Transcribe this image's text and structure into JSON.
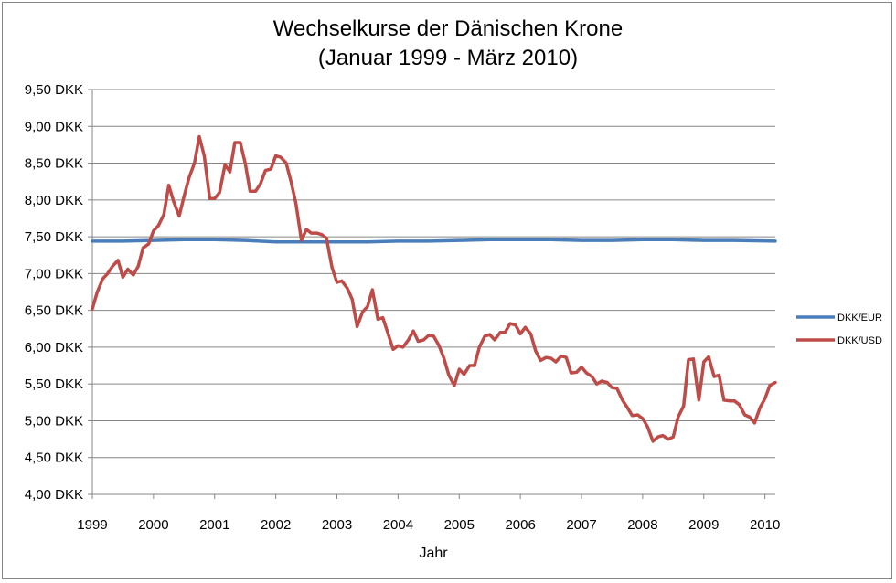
{
  "chart_data": {
    "type": "line",
    "title": "Wechselkurse der Dänischen Krone",
    "subtitle": "(Januar 1999 - März 2010)",
    "xlabel": "Jahr",
    "ylabel": "",
    "xlim": [
      1999.0,
      2010.17
    ],
    "ylim": [
      4.0,
      9.5
    ],
    "y_tick_step": 0.5,
    "y_tick_labels": [
      "4,00 DKK",
      "4,50 DKK",
      "5,00 DKK",
      "5,50 DKK",
      "6,00 DKK",
      "6,50 DKK",
      "7,00 DKK",
      "7,50 DKK",
      "8,00 DKK",
      "8,50 DKK",
      "9,00 DKK",
      "9,50 DKK"
    ],
    "x_tick_labels": [
      "1999",
      "2000",
      "2001",
      "2002",
      "2003",
      "2004",
      "2005",
      "2006",
      "2007",
      "2008",
      "2009",
      "2010"
    ],
    "grid": "horizontal",
    "legend_position": "right",
    "series": [
      {
        "name": "DKK/EUR",
        "color": "#4a7ebb",
        "points": [
          [
            1999.0,
            7.44
          ],
          [
            1999.5,
            7.44
          ],
          [
            2000.0,
            7.45
          ],
          [
            2000.5,
            7.46
          ],
          [
            2000.75,
            7.46
          ],
          [
            2001.0,
            7.46
          ],
          [
            2001.5,
            7.45
          ],
          [
            2002.0,
            7.43
          ],
          [
            2002.5,
            7.43
          ],
          [
            2003.0,
            7.43
          ],
          [
            2003.5,
            7.43
          ],
          [
            2004.0,
            7.44
          ],
          [
            2004.5,
            7.44
          ],
          [
            2005.0,
            7.45
          ],
          [
            2005.5,
            7.46
          ],
          [
            2006.0,
            7.46
          ],
          [
            2006.5,
            7.46
          ],
          [
            2007.0,
            7.45
          ],
          [
            2007.5,
            7.45
          ],
          [
            2008.0,
            7.46
          ],
          [
            2008.5,
            7.46
          ],
          [
            2009.0,
            7.45
          ],
          [
            2009.5,
            7.45
          ],
          [
            2010.17,
            7.44
          ]
        ]
      },
      {
        "name": "DKK/USD",
        "color": "#be4b48",
        "points": [
          [
            1999.0,
            6.52
          ],
          [
            1999.08,
            6.75
          ],
          [
            1999.17,
            6.93
          ],
          [
            1999.25,
            7.0
          ],
          [
            1999.33,
            7.1
          ],
          [
            1999.42,
            7.18
          ],
          [
            1999.5,
            6.95
          ],
          [
            1999.58,
            7.06
          ],
          [
            1999.67,
            6.98
          ],
          [
            1999.75,
            7.1
          ],
          [
            1999.83,
            7.35
          ],
          [
            1999.92,
            7.4
          ],
          [
            2000.0,
            7.58
          ],
          [
            2000.08,
            7.65
          ],
          [
            2000.17,
            7.8
          ],
          [
            2000.25,
            8.2
          ],
          [
            2000.33,
            7.98
          ],
          [
            2000.42,
            7.78
          ],
          [
            2000.5,
            8.05
          ],
          [
            2000.58,
            8.3
          ],
          [
            2000.67,
            8.5
          ],
          [
            2000.75,
            8.86
          ],
          [
            2000.83,
            8.6
          ],
          [
            2000.92,
            8.02
          ],
          [
            2001.0,
            8.02
          ],
          [
            2001.08,
            8.1
          ],
          [
            2001.17,
            8.48
          ],
          [
            2001.25,
            8.38
          ],
          [
            2001.33,
            8.78
          ],
          [
            2001.42,
            8.78
          ],
          [
            2001.5,
            8.5
          ],
          [
            2001.58,
            8.12
          ],
          [
            2001.67,
            8.12
          ],
          [
            2001.75,
            8.22
          ],
          [
            2001.83,
            8.4
          ],
          [
            2001.92,
            8.42
          ],
          [
            2002.0,
            8.6
          ],
          [
            2002.08,
            8.58
          ],
          [
            2002.17,
            8.5
          ],
          [
            2002.25,
            8.25
          ],
          [
            2002.33,
            7.95
          ],
          [
            2002.42,
            7.45
          ],
          [
            2002.5,
            7.6
          ],
          [
            2002.58,
            7.55
          ],
          [
            2002.67,
            7.55
          ],
          [
            2002.75,
            7.53
          ],
          [
            2002.83,
            7.48
          ],
          [
            2002.92,
            7.08
          ],
          [
            2003.0,
            6.88
          ],
          [
            2003.08,
            6.9
          ],
          [
            2003.17,
            6.8
          ],
          [
            2003.25,
            6.65
          ],
          [
            2003.33,
            6.28
          ],
          [
            2003.42,
            6.48
          ],
          [
            2003.5,
            6.55
          ],
          [
            2003.58,
            6.78
          ],
          [
            2003.67,
            6.38
          ],
          [
            2003.75,
            6.4
          ],
          [
            2003.83,
            6.2
          ],
          [
            2003.92,
            5.97
          ],
          [
            2004.0,
            6.02
          ],
          [
            2004.08,
            6.0
          ],
          [
            2004.17,
            6.1
          ],
          [
            2004.25,
            6.22
          ],
          [
            2004.33,
            6.08
          ],
          [
            2004.42,
            6.1
          ],
          [
            2004.5,
            6.16
          ],
          [
            2004.58,
            6.15
          ],
          [
            2004.67,
            6.02
          ],
          [
            2004.75,
            5.85
          ],
          [
            2004.83,
            5.62
          ],
          [
            2004.92,
            5.48
          ],
          [
            2005.0,
            5.7
          ],
          [
            2005.08,
            5.63
          ],
          [
            2005.17,
            5.75
          ],
          [
            2005.25,
            5.75
          ],
          [
            2005.33,
            6.0
          ],
          [
            2005.42,
            6.15
          ],
          [
            2005.5,
            6.17
          ],
          [
            2005.58,
            6.1
          ],
          [
            2005.67,
            6.2
          ],
          [
            2005.75,
            6.2
          ],
          [
            2005.83,
            6.32
          ],
          [
            2005.92,
            6.3
          ],
          [
            2006.0,
            6.18
          ],
          [
            2006.08,
            6.27
          ],
          [
            2006.17,
            6.18
          ],
          [
            2006.25,
            5.95
          ],
          [
            2006.33,
            5.82
          ],
          [
            2006.42,
            5.86
          ],
          [
            2006.5,
            5.85
          ],
          [
            2006.58,
            5.8
          ],
          [
            2006.67,
            5.88
          ],
          [
            2006.75,
            5.86
          ],
          [
            2006.83,
            5.65
          ],
          [
            2006.92,
            5.66
          ],
          [
            2007.0,
            5.73
          ],
          [
            2007.08,
            5.65
          ],
          [
            2007.17,
            5.6
          ],
          [
            2007.25,
            5.5
          ],
          [
            2007.33,
            5.54
          ],
          [
            2007.42,
            5.52
          ],
          [
            2007.5,
            5.45
          ],
          [
            2007.58,
            5.44
          ],
          [
            2007.67,
            5.28
          ],
          [
            2007.75,
            5.18
          ],
          [
            2007.83,
            5.07
          ],
          [
            2007.92,
            5.08
          ],
          [
            2008.0,
            5.03
          ],
          [
            2008.08,
            4.92
          ],
          [
            2008.17,
            4.72
          ],
          [
            2008.25,
            4.78
          ],
          [
            2008.33,
            4.8
          ],
          [
            2008.42,
            4.75
          ],
          [
            2008.5,
            4.78
          ],
          [
            2008.58,
            5.05
          ],
          [
            2008.67,
            5.2
          ],
          [
            2008.75,
            5.83
          ],
          [
            2008.83,
            5.84
          ],
          [
            2008.92,
            5.28
          ],
          [
            2009.0,
            5.8
          ],
          [
            2009.08,
            5.87
          ],
          [
            2009.17,
            5.6
          ],
          [
            2009.25,
            5.62
          ],
          [
            2009.33,
            5.28
          ],
          [
            2009.42,
            5.27
          ],
          [
            2009.5,
            5.27
          ],
          [
            2009.58,
            5.22
          ],
          [
            2009.67,
            5.08
          ],
          [
            2009.75,
            5.05
          ],
          [
            2009.83,
            4.97
          ],
          [
            2009.92,
            5.18
          ],
          [
            2010.0,
            5.3
          ],
          [
            2010.08,
            5.48
          ],
          [
            2010.17,
            5.52
          ]
        ]
      }
    ]
  }
}
